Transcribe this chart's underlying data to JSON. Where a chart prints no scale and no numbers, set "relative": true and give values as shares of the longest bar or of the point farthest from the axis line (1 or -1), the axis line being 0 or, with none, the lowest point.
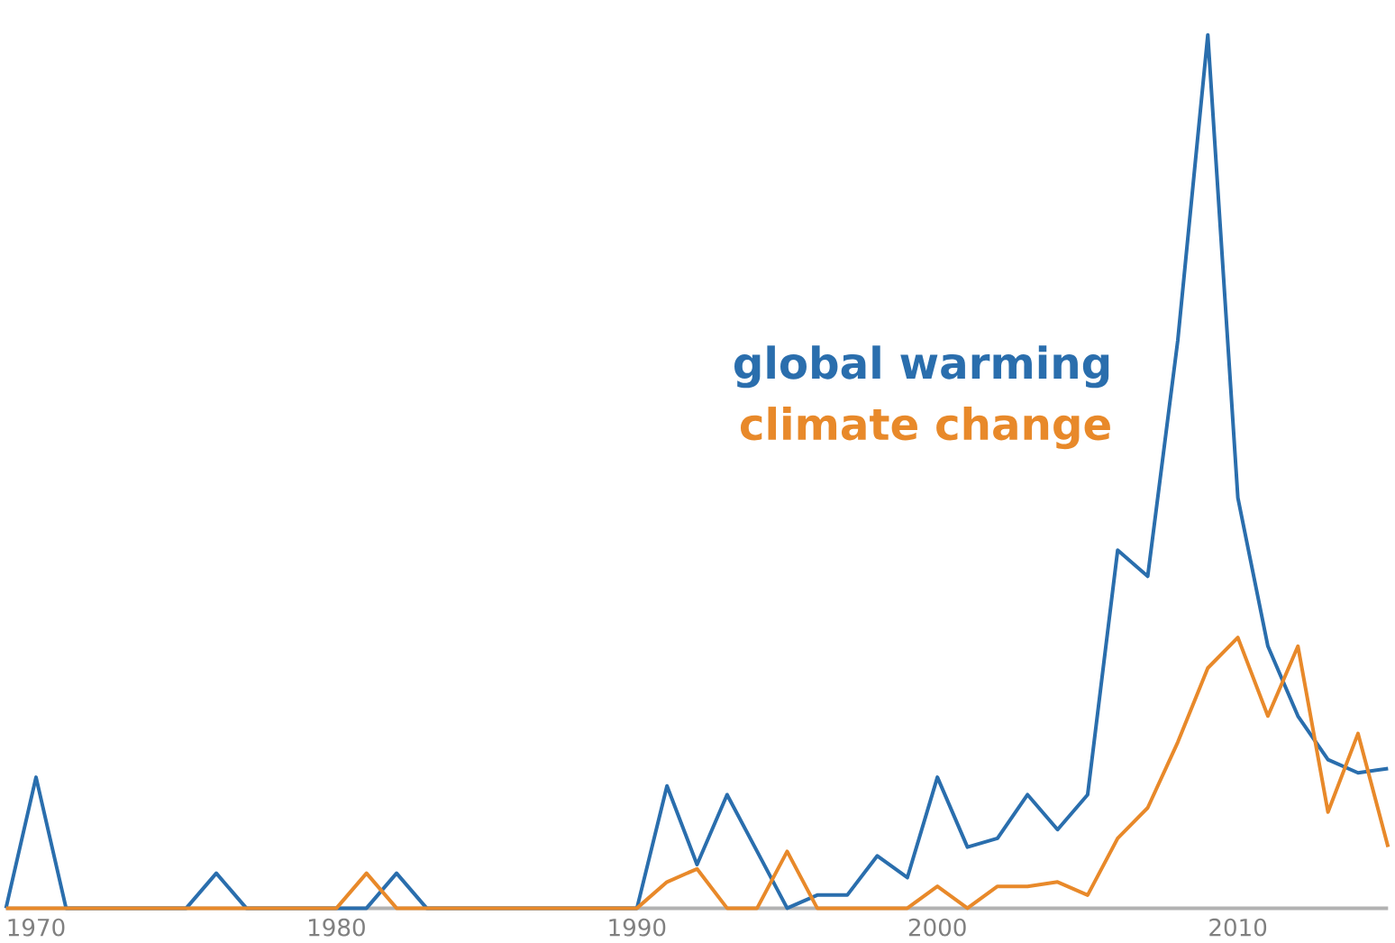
{
  "chart_data": {
    "type": "line",
    "relative": true,
    "x": [
      1969,
      1970,
      1971,
      1972,
      1973,
      1974,
      1975,
      1976,
      1977,
      1978,
      1979,
      1980,
      1981,
      1982,
      1983,
      1984,
      1985,
      1986,
      1987,
      1988,
      1989,
      1990,
      1991,
      1992,
      1993,
      1994,
      1995,
      1996,
      1997,
      1998,
      1999,
      2000,
      2001,
      2002,
      2003,
      2004,
      2005,
      2006,
      2007,
      2008,
      2009,
      2010,
      2011,
      2012,
      2013,
      2014,
      2015
    ],
    "xlim": [
      1969,
      2015
    ],
    "xticks": [
      1970,
      1980,
      1990,
      2000,
      2010
    ],
    "series": [
      {
        "name": "global warming",
        "color": "#2a6ead",
        "values": [
          0,
          0.15,
          0,
          0,
          0,
          0,
          0,
          0.04,
          0,
          0,
          0,
          0,
          0,
          0.04,
          0,
          0,
          0,
          0,
          0,
          0,
          0,
          0,
          0.14,
          0.05,
          0.13,
          0.065,
          0,
          0.015,
          0.015,
          0.06,
          0.035,
          0.15,
          0.07,
          0.08,
          0.13,
          0.09,
          0.13,
          0.41,
          0.38,
          0.65,
          1,
          0.47,
          0.3,
          0.22,
          0.17,
          0.155,
          0.16
        ]
      },
      {
        "name": "climate change",
        "color": "#e8892a",
        "values": [
          0,
          0,
          0,
          0,
          0,
          0,
          0,
          0,
          0,
          0,
          0,
          0,
          0.04,
          0,
          0,
          0,
          0,
          0,
          0,
          0,
          0,
          0,
          0.03,
          0.045,
          0,
          0,
          0.065,
          0,
          0,
          0,
          0,
          0.025,
          0,
          0.025,
          0.025,
          0.03,
          0.015,
          0.08,
          0.115,
          0.19,
          0.275,
          0.31,
          0.22,
          0.3,
          0.11,
          0.2,
          0.07
        ]
      }
    ]
  }
}
